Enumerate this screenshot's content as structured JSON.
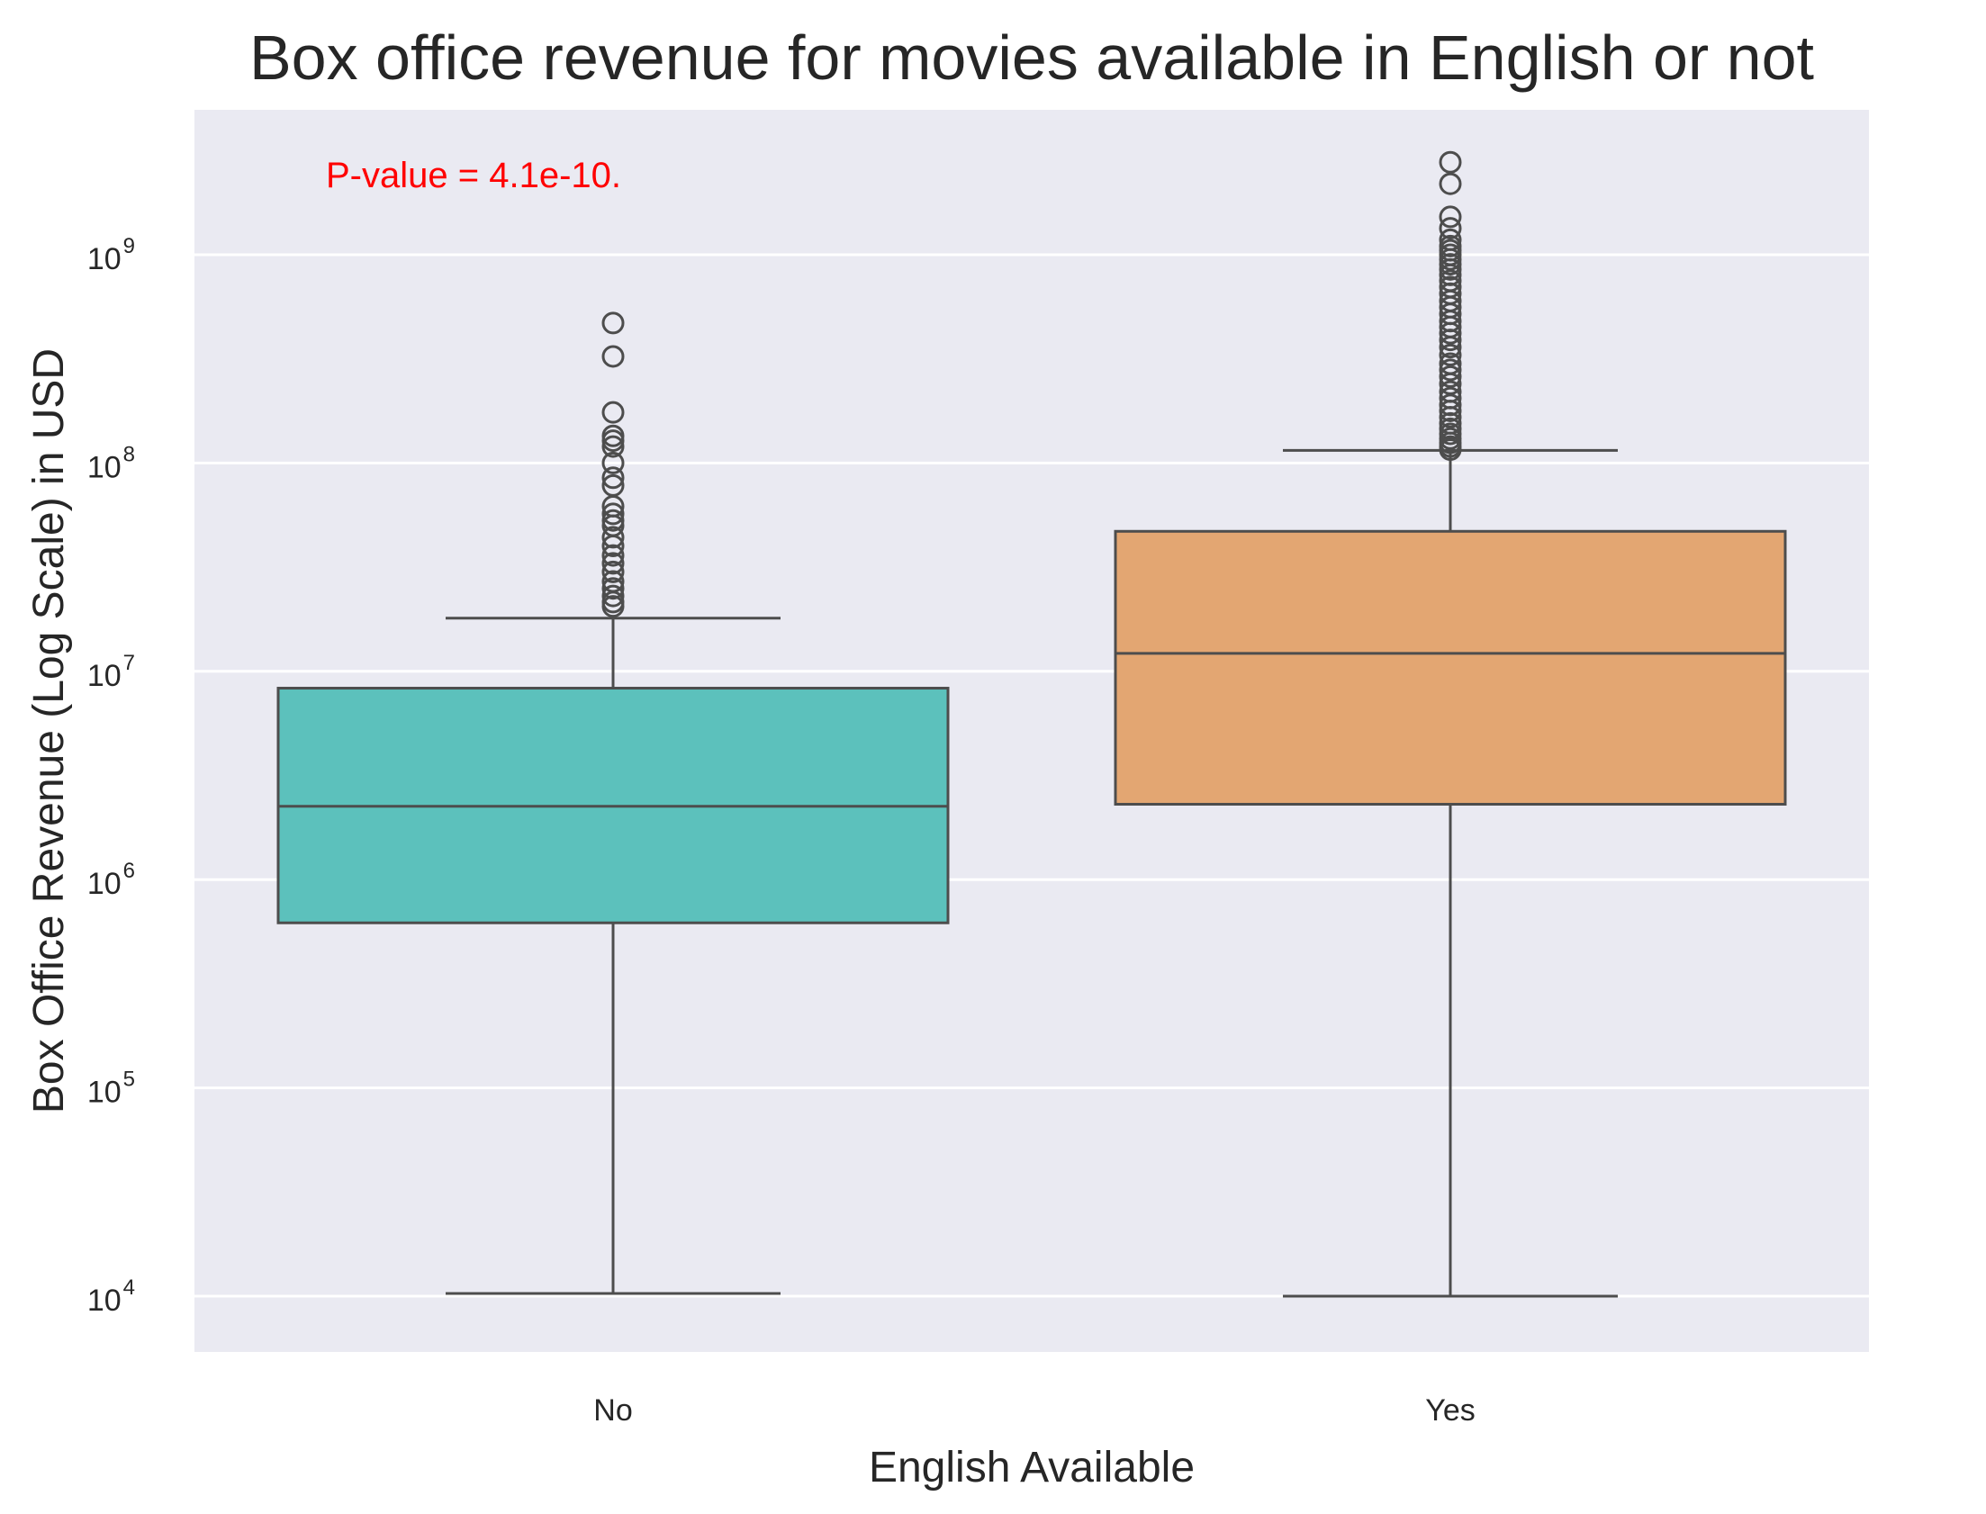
{
  "chart_data": {
    "type": "box",
    "title": "Box office revenue for movies available in English or not",
    "xlabel": "English Available",
    "ylabel": "Box Office Revenue (Log Scale) in USD",
    "yscale": "log",
    "ylim": [
      5500,
      5000000000
    ],
    "yticks": [
      {
        "base": "10",
        "exp": "4",
        "value": 10000
      },
      {
        "base": "10",
        "exp": "5",
        "value": 100000
      },
      {
        "base": "10",
        "exp": "6",
        "value": 1000000
      },
      {
        "base": "10",
        "exp": "7",
        "value": 10000000
      },
      {
        "base": "10",
        "exp": "8",
        "value": 100000000
      },
      {
        "base": "10",
        "exp": "9",
        "value": 1000000000
      }
    ],
    "grid": true,
    "categories": [
      "No",
      "Yes"
    ],
    "boxes": [
      {
        "category": "No",
        "color": "#5cc1bc",
        "whisker_low": 10300,
        "q1": 620000,
        "median": 2250000,
        "q3": 8300000,
        "whisker_high": 18000000,
        "outliers": [
          470000000,
          325000000,
          175000000,
          135000000,
          128000000,
          120000000,
          100000000,
          85000000,
          78000000,
          62000000,
          57000000,
          53000000,
          50000000,
          44000000,
          40000000,
          36000000,
          33000000,
          30000000,
          27000000,
          25000000,
          23000000,
          21500000,
          20500000
        ]
      },
      {
        "category": "Yes",
        "color": "#e3a672",
        "whisker_low": 10000,
        "q1": 2300000,
        "median": 12200000,
        "q3": 47000000,
        "whisker_high": 115000000,
        "outliers": [
          2780000000,
          2190000000,
          1520000000,
          1340000000,
          1180000000,
          1100000000,
          1050000000,
          1000000000,
          950000000,
          900000000,
          850000000,
          800000000,
          750000000,
          700000000,
          650000000,
          600000000,
          560000000,
          520000000,
          480000000,
          450000000,
          420000000,
          390000000,
          360000000,
          330000000,
          300000000,
          280000000,
          260000000,
          240000000,
          220000000,
          205000000,
          190000000,
          178000000,
          166000000,
          155000000,
          146000000,
          138000000,
          131000000,
          125000000,
          120000000,
          116000000
        ]
      }
    ],
    "annotations": [
      {
        "text": "P-value = 4.1e-10.",
        "color": "#ff0000"
      }
    ]
  }
}
